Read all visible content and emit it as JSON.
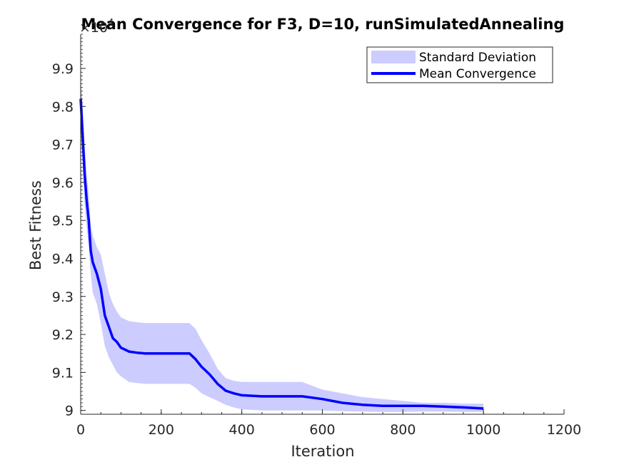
{
  "chart_data": {
    "type": "area",
    "title": "Mean Convergence for F3, D=10, runSimulatedAnnealing",
    "xlabel": "Iteration",
    "ylabel": "Best Fitness",
    "y_exponent_label": "×10",
    "y_exponent_power": "4",
    "xlim": [
      0,
      1200
    ],
    "ylim": [
      8.99,
      9.99
    ],
    "x_ticks": [
      "0",
      "200",
      "400",
      "600",
      "800",
      "1000",
      "1200"
    ],
    "x_tick_values": [
      0,
      200,
      400,
      600,
      800,
      1000,
      1200
    ],
    "y_ticks": [
      "9",
      "9.1",
      "9.2",
      "9.3",
      "9.4",
      "9.5",
      "9.6",
      "9.7",
      "9.8",
      "9.9"
    ],
    "y_tick_values": [
      9.0,
      9.1,
      9.2,
      9.3,
      9.4,
      9.5,
      9.6,
      9.7,
      9.8,
      9.9
    ],
    "grid": false,
    "legend_position": "top-right",
    "series": [
      {
        "name": "Mean Convergence",
        "color": "#0000ff",
        "x": [
          0,
          5,
          10,
          15,
          20,
          25,
          30,
          40,
          50,
          60,
          70,
          80,
          90,
          100,
          120,
          140,
          160,
          200,
          240,
          270,
          285,
          300,
          320,
          340,
          360,
          380,
          400,
          450,
          500,
          550,
          600,
          650,
          700,
          750,
          800,
          850,
          900,
          950,
          1000
        ],
        "y": [
          9.82,
          9.72,
          9.62,
          9.55,
          9.5,
          9.42,
          9.39,
          9.36,
          9.32,
          9.25,
          9.22,
          9.19,
          9.18,
          9.165,
          9.155,
          9.152,
          9.15,
          9.15,
          9.15,
          9.15,
          9.135,
          9.115,
          9.095,
          9.07,
          9.052,
          9.045,
          9.04,
          9.037,
          9.037,
          9.037,
          9.03,
          9.02,
          9.015,
          9.012,
          9.012,
          9.012,
          9.01,
          9.008,
          9.005
        ]
      },
      {
        "name": "Standard Deviation",
        "color": "#ccccff",
        "x": [
          0,
          5,
          10,
          15,
          20,
          25,
          30,
          40,
          50,
          60,
          70,
          80,
          90,
          100,
          120,
          140,
          160,
          200,
          240,
          270,
          285,
          300,
          320,
          340,
          360,
          380,
          400,
          450,
          500,
          550,
          600,
          650,
          700,
          750,
          800,
          850,
          900,
          950,
          1000
        ],
        "upper": [
          9.88,
          9.8,
          9.7,
          9.62,
          9.57,
          9.49,
          9.46,
          9.43,
          9.41,
          9.36,
          9.31,
          9.28,
          9.26,
          9.245,
          9.235,
          9.232,
          9.23,
          9.23,
          9.23,
          9.23,
          9.215,
          9.185,
          9.15,
          9.11,
          9.085,
          9.078,
          9.075,
          9.075,
          9.075,
          9.075,
          9.055,
          9.045,
          9.035,
          9.03,
          9.025,
          9.02,
          9.02,
          9.018,
          9.018
        ],
        "lower": [
          9.74,
          9.65,
          9.54,
          9.48,
          9.43,
          9.36,
          9.31,
          9.28,
          9.23,
          9.17,
          9.14,
          9.12,
          9.1,
          9.09,
          9.075,
          9.072,
          9.07,
          9.07,
          9.07,
          9.07,
          9.06,
          9.045,
          9.035,
          9.025,
          9.015,
          9.008,
          9.003,
          9.0,
          9.0,
          9.0,
          9.0,
          8.998,
          8.997,
          8.996,
          8.996,
          8.997,
          8.997,
          8.996,
          8.996
        ]
      }
    ],
    "legend": [
      {
        "label": "Standard Deviation",
        "color": "#ccccff",
        "kind": "patch"
      },
      {
        "label": "Mean Convergence",
        "color": "#0000ff",
        "kind": "line"
      }
    ]
  }
}
